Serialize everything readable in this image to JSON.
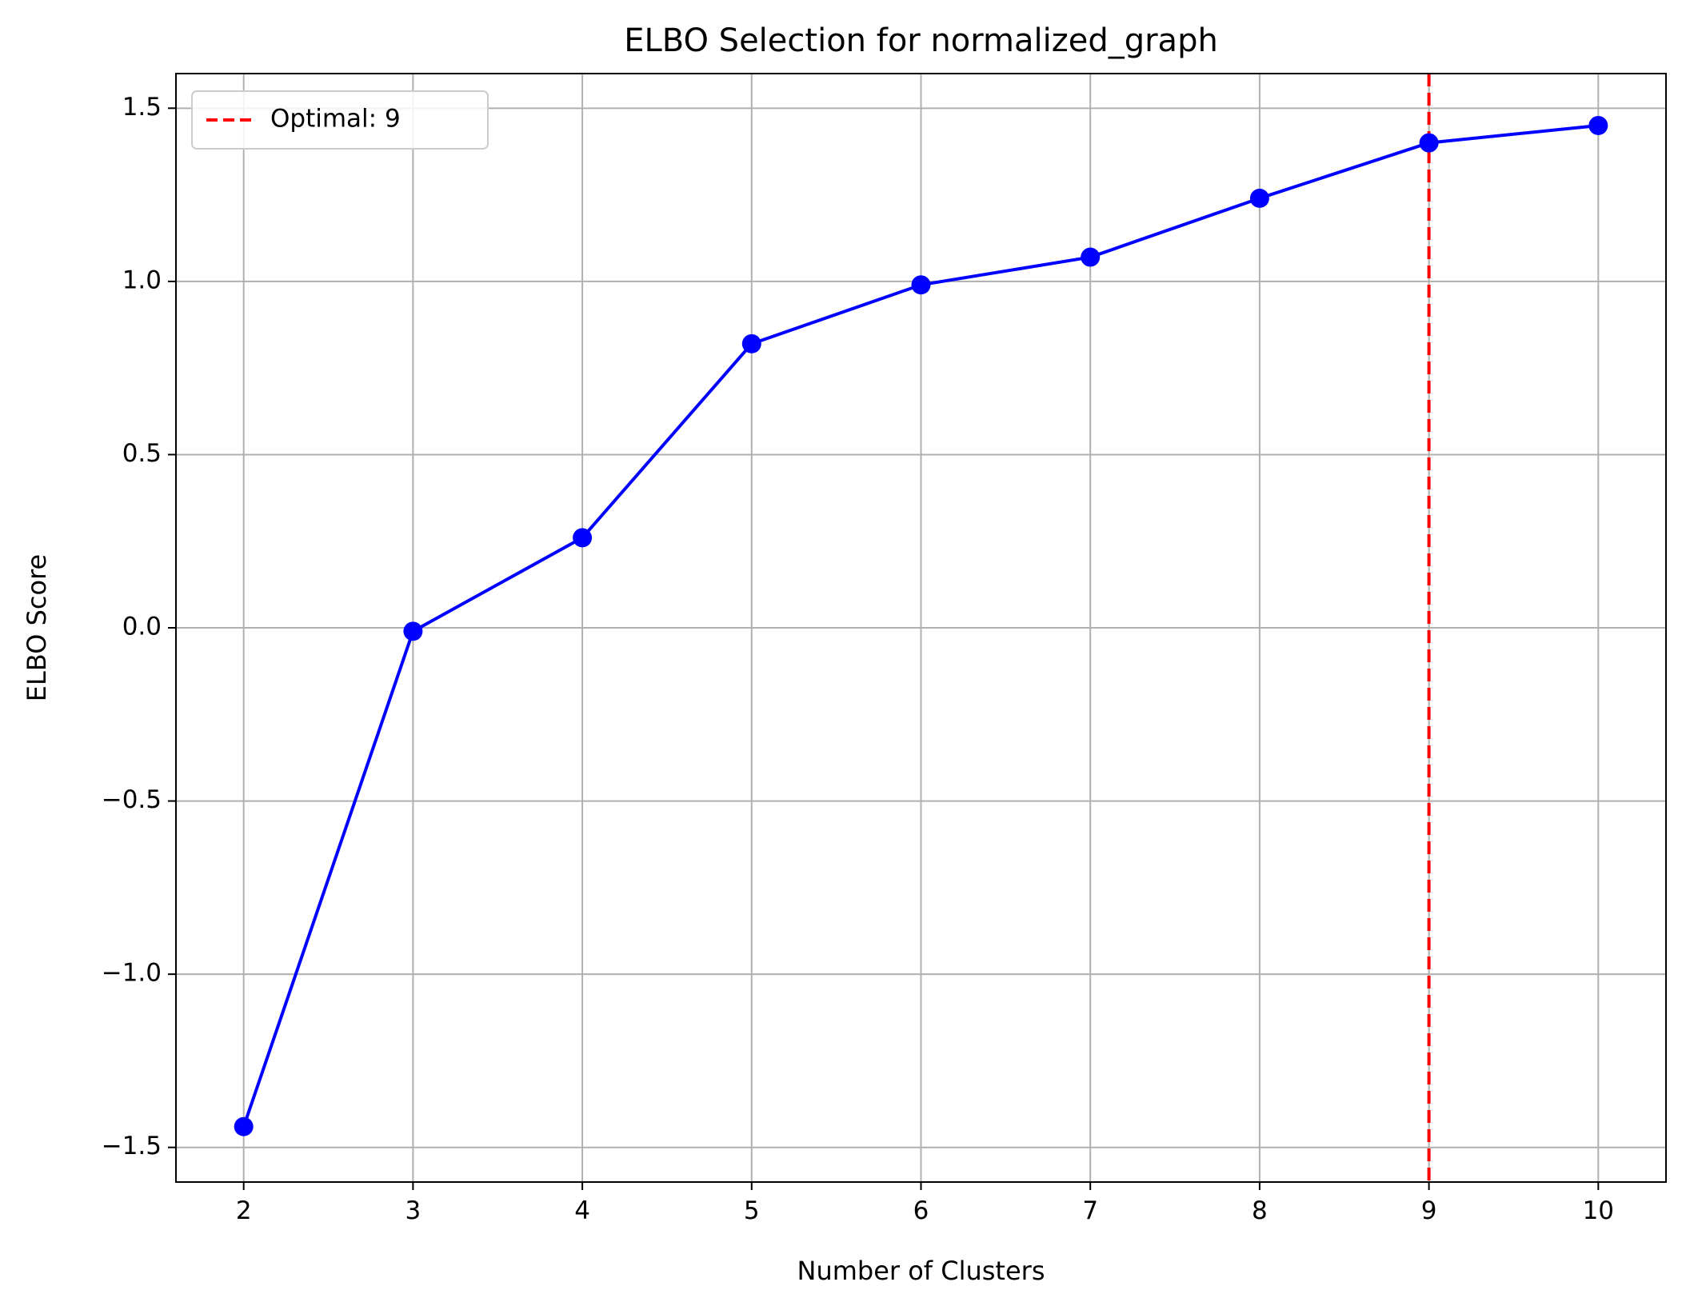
{
  "chart_data": {
    "type": "line",
    "title": "ELBO Selection for normalized_graph",
    "xlabel": "Number of Clusters",
    "ylabel": "ELBO Score",
    "x": [
      2,
      3,
      4,
      5,
      6,
      7,
      8,
      9,
      10
    ],
    "series": [
      {
        "values": [
          -1.44,
          -0.01,
          0.26,
          0.82,
          0.99,
          1.07,
          1.24,
          1.4,
          1.45
        ],
        "color": "#0000ff",
        "marker": "circle"
      }
    ],
    "xlim": [
      1.6,
      10.4
    ],
    "ylim": [
      -1.6,
      1.6
    ],
    "xticks": [
      2,
      3,
      4,
      5,
      6,
      7,
      8,
      9,
      10
    ],
    "yticks": [
      -1.5,
      -1.0,
      -0.5,
      0.0,
      0.5,
      1.0,
      1.5
    ],
    "ytick_labels": [
      "−1.5",
      "−1.0",
      "−0.5",
      "0.0",
      "0.5",
      "1.0",
      "1.5"
    ],
    "grid": true,
    "reference_line": {
      "orientation": "vertical",
      "x": 9,
      "color": "#ff0000",
      "style": "dashed",
      "label": "Optimal: 9"
    },
    "legend": {
      "position": "top-left",
      "entries": [
        "Optimal: 9"
      ]
    }
  }
}
